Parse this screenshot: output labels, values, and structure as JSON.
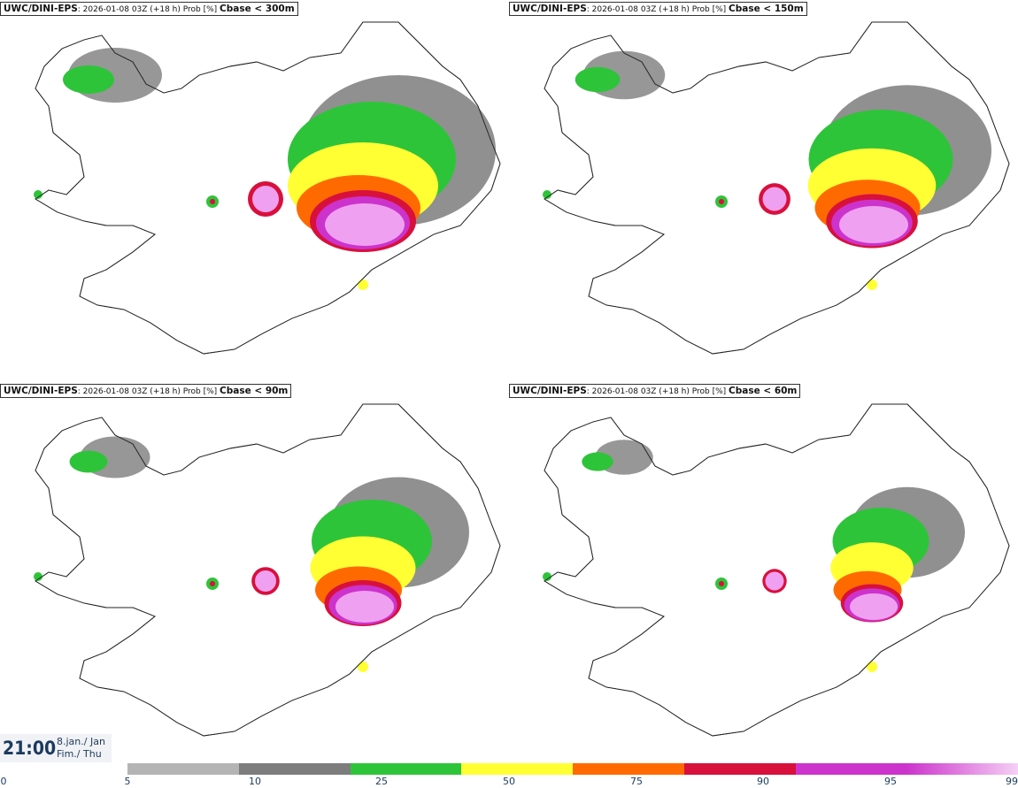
{
  "panels": [
    {
      "title_bold": "UWC/DINI-EPS",
      "title_info": ": 2026-01-08 03Z (+18 h) Prob [%] ",
      "threshold": "Cbase < 300m",
      "intensity": 1.0
    },
    {
      "title_bold": "UWC/DINI-EPS",
      "title_info": ": 2026-01-08 03Z (+18 h) Prob [%] ",
      "threshold": "Cbase < 150m",
      "intensity": 0.85
    },
    {
      "title_bold": "UWC/DINI-EPS",
      "title_info": ": 2026-01-08 03Z (+18 h) Prob [%] ",
      "threshold": "Cbase < 90m",
      "intensity": 0.7
    },
    {
      "title_bold": "UWC/DINI-EPS",
      "title_info": ": 2026-01-08 03Z (+18 h) Prob [%] ",
      "threshold": "Cbase < 60m",
      "intensity": 0.55
    }
  ],
  "time": {
    "clock": "21:00",
    "date_line1": "8.jan./ Jan",
    "date_line2": "Fim./ Thu"
  },
  "colorbar": {
    "ticks": [
      "0",
      "5",
      "10",
      "25",
      "50",
      "75",
      "90",
      "95",
      "99"
    ],
    "colors": [
      "#b4b4b4",
      "#7d7d7d",
      "#2ec43a",
      "#ffff33",
      "#ff6a00",
      "#d8103c",
      "#cc33cc",
      "#f0a0f0"
    ]
  }
}
